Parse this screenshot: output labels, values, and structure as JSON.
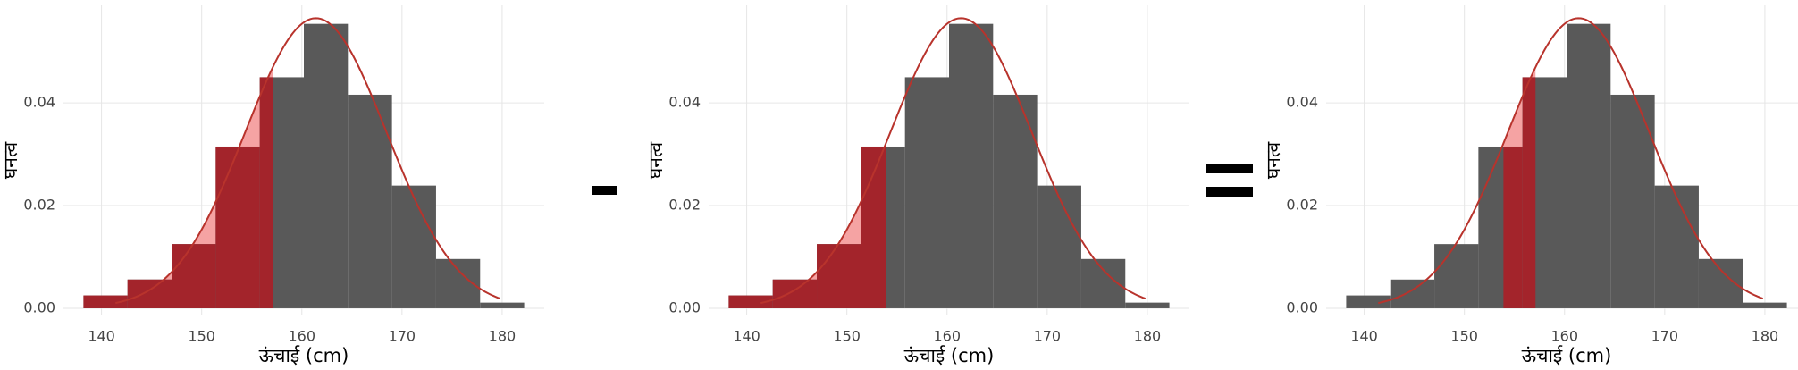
{
  "chart_data": [
    {
      "type": "histogram",
      "bins": [
        138.2,
        142.6,
        147.0,
        151.4,
        155.8,
        160.2,
        164.6,
        169.0,
        173.4,
        177.8,
        182.2
      ],
      "values": [
        0.0025,
        0.0056,
        0.0125,
        0.0315,
        0.045,
        0.0554,
        0.0416,
        0.0239,
        0.0096,
        0.0011
      ],
      "color": "#595959",
      "curve": {
        "mean": 161.4,
        "sd": 7.06,
        "range": [
          141.4,
          179.8
        ],
        "color": "#b8332c"
      },
      "shade": {
        "range": [
          138.2,
          157.1
        ],
        "curve_color": "#f5a3a3",
        "bar_color": "#a3242b"
      },
      "xlim": [
        136.2,
        184.2
      ],
      "ylim": [
        -0.0014,
        0.059
      ],
      "xticks": [
        140,
        150,
        160,
        170,
        180
      ],
      "yticks": [
        {
          "value": 0,
          "label": "0.00"
        },
        {
          "value": 0.02,
          "label": "0.02"
        },
        {
          "value": 0.04,
          "label": "0.04"
        }
      ],
      "x_label": "ऊंचाई (cm)",
      "y_label": "घनत्व",
      "grid": true
    },
    {
      "type": "histogram",
      "bins": [
        138.2,
        142.6,
        147.0,
        151.4,
        155.8,
        160.2,
        164.6,
        169.0,
        173.4,
        177.8,
        182.2
      ],
      "values": [
        0.0025,
        0.0056,
        0.0125,
        0.0315,
        0.045,
        0.0554,
        0.0416,
        0.0239,
        0.0096,
        0.0011
      ],
      "color": "#595959",
      "curve": {
        "mean": 161.4,
        "sd": 7.06,
        "range": [
          141.4,
          179.8
        ],
        "color": "#b8332c"
      },
      "shade": {
        "range": [
          138.2,
          153.9
        ],
        "curve_color": "#f5a3a3",
        "bar_color": "#a3242b"
      },
      "xlim": [
        136.2,
        184.2
      ],
      "ylim": [
        -0.0014,
        0.059
      ],
      "xticks": [
        140,
        150,
        160,
        170,
        180
      ],
      "yticks": [
        {
          "value": 0,
          "label": "0.00"
        },
        {
          "value": 0.02,
          "label": "0.02"
        },
        {
          "value": 0.04,
          "label": "0.04"
        }
      ],
      "x_label": "ऊंचाई (cm)",
      "y_label": "घनत्व",
      "grid": true
    },
    {
      "type": "histogram",
      "bins": [
        138.2,
        142.6,
        147.0,
        151.4,
        155.8,
        160.2,
        164.6,
        169.0,
        173.4,
        177.8,
        182.2
      ],
      "values": [
        0.0025,
        0.0056,
        0.0125,
        0.0315,
        0.045,
        0.0554,
        0.0416,
        0.0239,
        0.0096,
        0.0011
      ],
      "color": "#595959",
      "curve": {
        "mean": 161.4,
        "sd": 7.06,
        "range": [
          141.4,
          179.8
        ],
        "color": "#b8332c"
      },
      "shade": {
        "range": [
          153.9,
          157.1
        ],
        "curve_color": "#f5a3a3",
        "bar_color": "#a3242b"
      },
      "xlim": [
        136.2,
        184.2
      ],
      "ylim": [
        -0.0014,
        0.059
      ],
      "xticks": [
        140,
        150,
        160,
        170,
        180
      ],
      "yticks": [
        {
          "value": 0,
          "label": "0.00"
        },
        {
          "value": 0.02,
          "label": "0.02"
        },
        {
          "value": 0.04,
          "label": "0.04"
        }
      ],
      "x_label": "ऊंचाई (cm)",
      "y_label": "घनत्व",
      "grid": true
    }
  ]
}
